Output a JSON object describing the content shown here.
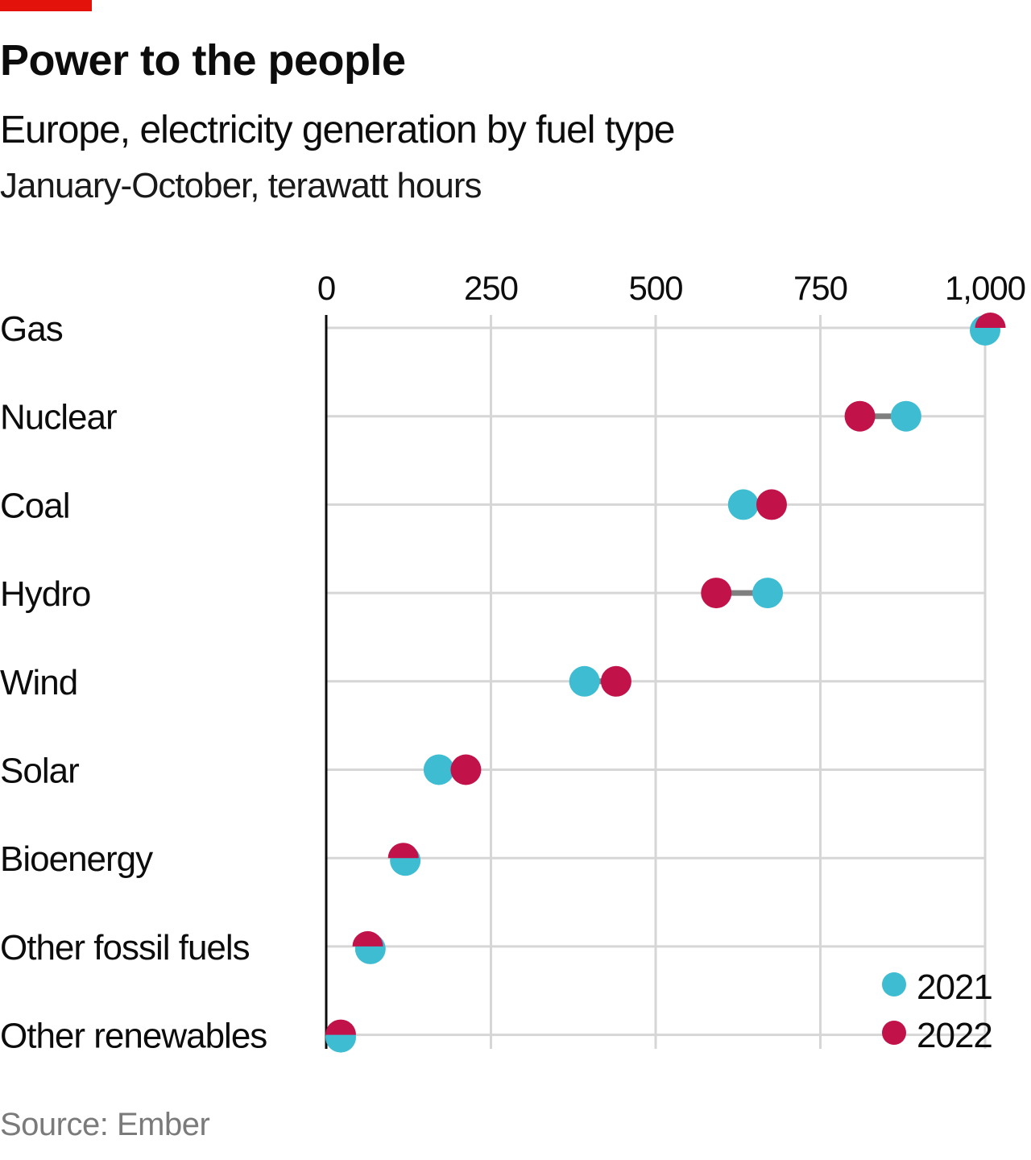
{
  "header": {
    "title": "Power to the people",
    "subtitle": "Europe, electricity generation by fuel type",
    "unit_line": "January-October, terawatt hours"
  },
  "footer": {
    "source": "Source: Ember"
  },
  "colors": {
    "brand": "#e3120b",
    "series_2021": "#3ebcd2",
    "series_2022": "#c1124a",
    "connector": "#7f7f7f",
    "grid": "#d6d6d6",
    "axis": "#0c0c0c"
  },
  "chart_data": {
    "type": "scatter",
    "subtype": "dumbbell",
    "title": "Power to the people",
    "subtitle": "Europe, electricity generation by fuel type",
    "xlabel": "January-October, terawatt hours",
    "ylabel": "",
    "xlim": [
      0,
      1000
    ],
    "xticks": [
      0,
      250,
      500,
      750,
      1000
    ],
    "xtick_labels": [
      "0",
      "250",
      "500",
      "750",
      "1,000"
    ],
    "grid": true,
    "legend": "bottom-right",
    "categories": [
      "Gas",
      "Nuclear",
      "Coal",
      "Hydro",
      "Wind",
      "Solar",
      "Bioenergy",
      "Other fossil fuels",
      "Other renewables"
    ],
    "series": [
      {
        "name": "2021",
        "values": [
          1000,
          880,
          633,
          670,
          392,
          171,
          120,
          67,
          22
        ]
      },
      {
        "name": "2022",
        "values": [
          1008,
          810,
          676,
          592,
          440,
          212,
          117,
          63,
          22
        ]
      }
    ]
  }
}
